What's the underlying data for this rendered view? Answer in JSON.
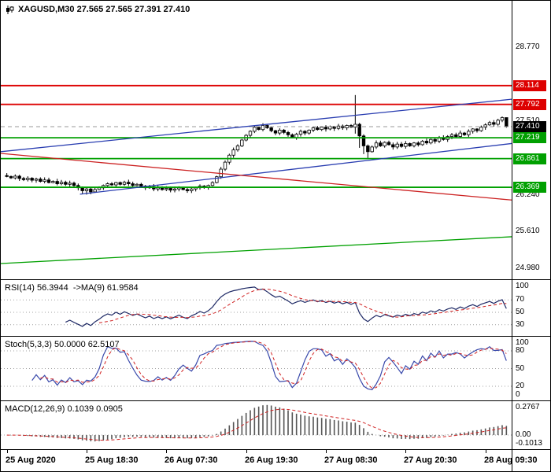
{
  "chart_data": {
    "type": "candlestick",
    "title": "XAGUSD,M30 27.565 27.565 27.391 27.410",
    "symbol": "XAGUSD",
    "timeframe": "M30",
    "ohlc_current": {
      "open": 27.565,
      "high": 27.565,
      "low": 27.391,
      "close": 27.41
    },
    "price_axis": {
      "top": 29.57,
      "bottom": 24.79,
      "plain_labels": [
        "28.770",
        "27.510",
        "26.240",
        "25.610",
        "24.980"
      ]
    },
    "levels": {
      "resistance": [
        28.114,
        27.792
      ],
      "support": [
        27.219,
        26.861,
        26.369
      ],
      "current_price": 27.41
    },
    "trendlines": [
      {
        "name": "blue-upper-channel-line",
        "color": "#2a3eb1",
        "x0": 0,
        "p0": 26.98,
        "x1": 1,
        "p1": 27.88
      },
      {
        "name": "blue-lower-channel-line",
        "color": "#2a3eb1",
        "x0": 0.155,
        "p0": 26.25,
        "x1": 1,
        "p1": 27.12
      },
      {
        "name": "red-descending-trendline",
        "color": "#cc2222",
        "x0": 0,
        "p0": 26.95,
        "x1": 1,
        "p1": 26.15
      },
      {
        "name": "green-ascending-trendline",
        "color": "#00a000",
        "x0": 0,
        "p0": 25.06,
        "x1": 1,
        "p1": 25.52
      }
    ],
    "x_labels": [
      "25 Aug 2020",
      "25 Aug 18:30",
      "26 Aug 07:30",
      "26 Aug 19:30",
      "27 Aug 08:30",
      "27 Aug 20:30",
      "28 Aug 09:30"
    ],
    "x_label_indices": [
      0,
      19,
      38,
      57,
      76,
      95,
      114
    ],
    "candles": {
      "first_open": 26.57,
      "closes": [
        26.555,
        26.53,
        26.56,
        26.52,
        26.5,
        26.525,
        26.49,
        26.51,
        26.47,
        26.495,
        26.45,
        26.47,
        26.43,
        26.455,
        26.42,
        26.44,
        26.4,
        26.36,
        26.31,
        26.34,
        26.29,
        26.33,
        26.36,
        26.4,
        26.43,
        26.41,
        26.45,
        26.42,
        26.455,
        26.43,
        26.4,
        26.42,
        26.39,
        26.36,
        26.38,
        26.34,
        26.36,
        26.33,
        26.35,
        26.32,
        26.34,
        26.36,
        26.33,
        26.31,
        26.34,
        26.36,
        26.39,
        26.37,
        26.4,
        26.45,
        26.55,
        26.68,
        26.8,
        26.92,
        27.01,
        27.08,
        27.18,
        27.26,
        27.33,
        27.4,
        27.36,
        27.43,
        27.39,
        27.34,
        27.3,
        27.35,
        27.31,
        27.27,
        27.22,
        27.28,
        27.33,
        27.3,
        27.35,
        27.39,
        27.36,
        27.4,
        27.37,
        27.41,
        27.38,
        27.42,
        27.39,
        27.43,
        27.4,
        27.45,
        27.25,
        27.08,
        26.98,
        27.06,
        27.13,
        27.08,
        27.14,
        27.1,
        27.06,
        27.11,
        27.07,
        27.12,
        27.08,
        27.13,
        27.1,
        27.16,
        27.13,
        27.19,
        27.16,
        27.22,
        27.19,
        27.24,
        27.27,
        27.24,
        27.3,
        27.27,
        27.33,
        27.37,
        27.34,
        27.4,
        27.44,
        27.48,
        27.45,
        27.52,
        27.565,
        27.41
      ],
      "wick_overrides": {
        "18": {
          "l": 26.252
        },
        "19": {
          "l": 26.243
        },
        "20": {
          "l": 26.248
        },
        "83": {
          "h": 27.952,
          "l": 27.29
        },
        "84": {
          "l": 27.046
        },
        "85": {
          "l": 26.938
        },
        "86": {
          "l": 26.868
        },
        "118": {
          "h": 27.585
        },
        "119": {
          "h": 27.565,
          "l": 27.391
        }
      }
    },
    "indicators": {
      "rsi": {
        "label": "RSI(14) 56.3944  ->MA(9) 61.9584",
        "period": 14,
        "ma_period": 9,
        "scale_labels": [
          "100",
          "70",
          "50",
          "30"
        ],
        "grid": [
          70,
          50,
          30
        ],
        "range": [
          12,
          102
        ]
      },
      "stoch": {
        "label": "Stoch(5,3,3) 50.0000 62.5107",
        "k": 5,
        "d": 3,
        "slowing": 3,
        "scale_labels": [
          "100",
          "80",
          "50",
          "20",
          "0"
        ],
        "grid": [
          80,
          50,
          20
        ],
        "range": [
          -4,
          104
        ]
      },
      "macd": {
        "label": "MACD(12,26,9) 0.1039 0.0905",
        "fast": 12,
        "slow": 26,
        "signal": 9,
        "scale_labels": [
          "0.2767",
          "0.00",
          "-0.1013"
        ],
        "grid": [
          0
        ],
        "range": [
          -0.125,
          0.3
        ]
      }
    },
    "colors": {
      "resistance": "#dd0000",
      "support": "#00a000",
      "current_box": "#000000",
      "current_line": "#999999",
      "bull": "#ffffff",
      "bear": "#000000",
      "candle_stroke": "#000000",
      "rsi_main": "#1f2a66",
      "rsi_signal": "#d02020",
      "stoch_main": "#3949ab",
      "stoch_signal": "#d02020",
      "macd_hist": "#555555",
      "macd_signal": "#d02020",
      "grid_dotted": "#a0a0a0"
    }
  }
}
